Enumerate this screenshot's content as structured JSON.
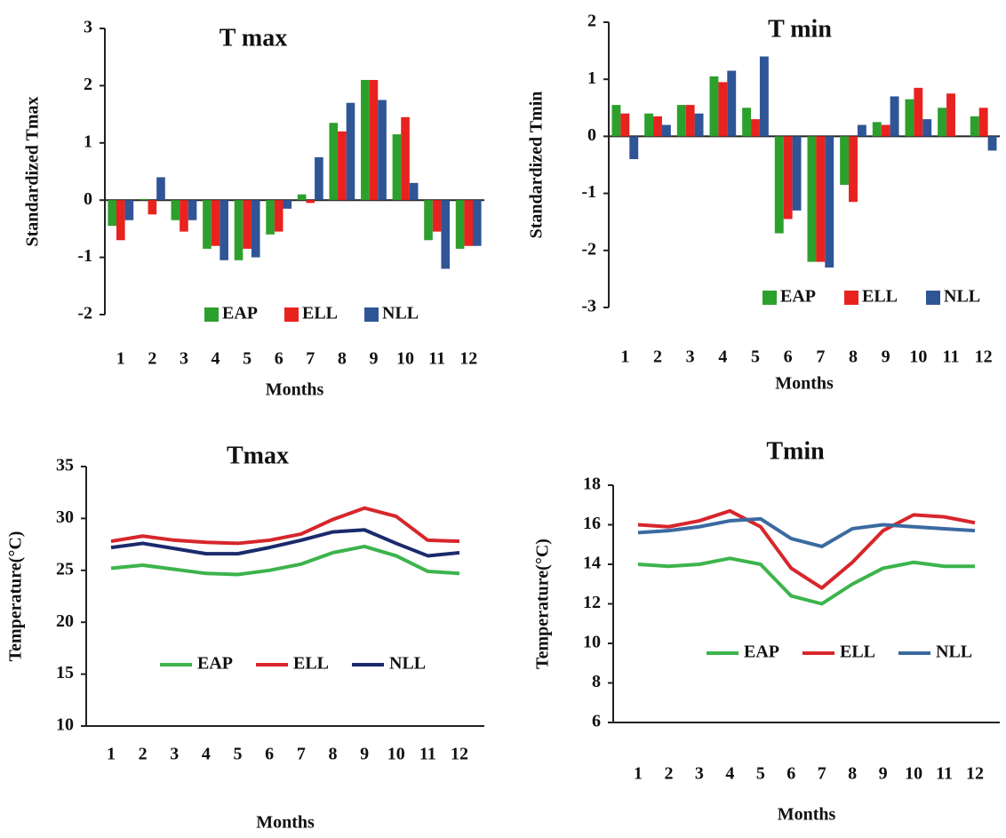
{
  "chart_data": [
    {
      "type": "bar",
      "title": "T max",
      "x_label": "Months",
      "y_label": "Standardized Tmax",
      "categories": [
        "1",
        "2",
        "3",
        "4",
        "5",
        "6",
        "7",
        "8",
        "9",
        "10",
        "11",
        "12"
      ],
      "ylim": [
        -2,
        3
      ],
      "yticks": [
        -2,
        -1,
        0,
        1,
        2,
        3
      ],
      "series": [
        {
          "name": "EAP",
          "color": "#2ca02c",
          "values": [
            -0.45,
            0.02,
            -0.35,
            -0.85,
            -1.05,
            -0.6,
            0.1,
            1.35,
            2.1,
            1.15,
            -0.7,
            -0.85
          ]
        },
        {
          "name": "ELL",
          "color": "#e8221f",
          "values": [
            -0.7,
            -0.25,
            -0.55,
            -0.8,
            -0.85,
            -0.55,
            -0.05,
            1.2,
            2.1,
            1.45,
            -0.55,
            -0.8
          ]
        },
        {
          "name": "NLL",
          "color": "#2f5597",
          "values": [
            -0.35,
            0.4,
            -0.35,
            -1.05,
            -1.0,
            -0.15,
            0.75,
            1.7,
            1.75,
            0.3,
            -1.2,
            -0.8
          ]
        }
      ]
    },
    {
      "type": "bar",
      "title": "T min",
      "x_label": "Months",
      "y_label": "Standardized Tmin",
      "categories": [
        "1",
        "2",
        "3",
        "4",
        "5",
        "6",
        "7",
        "8",
        "9",
        "10",
        "11",
        "12"
      ],
      "ylim": [
        -3,
        2
      ],
      "yticks": [
        -3,
        -2,
        -1,
        0,
        1,
        2
      ],
      "series": [
        {
          "name": "EAP",
          "color": "#2ca02c",
          "values": [
            0.55,
            0.4,
            0.55,
            1.05,
            0.5,
            -1.7,
            -2.2,
            -0.85,
            0.25,
            0.65,
            0.5,
            0.35
          ]
        },
        {
          "name": "ELL",
          "color": "#e8221f",
          "values": [
            0.4,
            0.35,
            0.55,
            0.95,
            0.3,
            -1.45,
            -2.2,
            -1.15,
            0.2,
            0.85,
            0.75,
            0.5
          ]
        },
        {
          "name": "NLL",
          "color": "#2f5597",
          "values": [
            -0.4,
            0.2,
            0.4,
            1.15,
            1.4,
            -1.3,
            -2.3,
            0.2,
            0.7,
            0.3,
            0.0,
            -0.25
          ]
        }
      ]
    },
    {
      "type": "line",
      "title": "Tmax",
      "x_label": "Months",
      "y_label": "Temperature(°C)",
      "categories": [
        "1",
        "2",
        "3",
        "4",
        "5",
        "6",
        "7",
        "8",
        "9",
        "10",
        "11",
        "12"
      ],
      "ylim": [
        10,
        35
      ],
      "yticks": [
        10,
        15,
        20,
        25,
        30,
        35
      ],
      "series": [
        {
          "name": "EAP",
          "color": "#3cb44b",
          "values": [
            25.2,
            25.5,
            25.1,
            24.7,
            24.6,
            25.0,
            25.6,
            26.7,
            27.3,
            26.4,
            24.9,
            24.7
          ]
        },
        {
          "name": "ELL",
          "color": "#d7262b",
          "values": [
            27.8,
            28.3,
            27.9,
            27.7,
            27.6,
            27.9,
            28.5,
            29.9,
            31.0,
            30.2,
            27.9,
            27.8
          ]
        },
        {
          "name": "NLL",
          "color": "#1a2a6c",
          "values": [
            27.2,
            27.6,
            27.1,
            26.6,
            26.6,
            27.2,
            27.9,
            28.7,
            28.9,
            27.6,
            26.4,
            26.7
          ]
        }
      ]
    },
    {
      "type": "line",
      "title": "Tmin",
      "x_label": "Months",
      "y_label": "Temperature(°C)",
      "categories": [
        "1",
        "2",
        "3",
        "4",
        "5",
        "6",
        "7",
        "8",
        "9",
        "10",
        "11",
        "12"
      ],
      "ylim": [
        6,
        18
      ],
      "yticks": [
        6,
        8,
        10,
        12,
        14,
        16,
        18
      ],
      "series": [
        {
          "name": "EAP",
          "color": "#3cb44b",
          "values": [
            14.0,
            13.9,
            14.0,
            14.3,
            14.0,
            12.4,
            12.0,
            13.0,
            13.8,
            14.1,
            13.9,
            13.9
          ]
        },
        {
          "name": "ELL",
          "color": "#d7262b",
          "values": [
            16.0,
            15.9,
            16.2,
            16.7,
            15.9,
            13.8,
            12.8,
            14.1,
            15.7,
            16.5,
            16.4,
            16.1
          ]
        },
        {
          "name": "NLL",
          "color": "#3b6aa0",
          "values": [
            15.6,
            15.7,
            15.9,
            16.2,
            16.3,
            15.3,
            14.9,
            15.8,
            16.0,
            15.9,
            15.8,
            15.7
          ]
        }
      ]
    }
  ]
}
